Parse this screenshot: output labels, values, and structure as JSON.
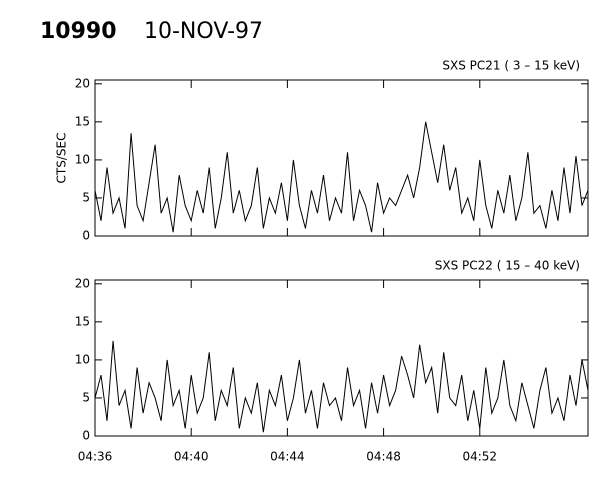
{
  "header": {
    "id": "10990",
    "date": "10-NOV-97"
  },
  "chart_data": [
    {
      "type": "line",
      "title": "SXS PC21  (  3 – 15 keV)",
      "y_label": "CTS/SEC",
      "color": "#000000",
      "x": [
        276,
        276.25,
        276.5,
        276.75,
        277,
        277.25,
        277.5,
        277.75,
        278,
        278.25,
        278.5,
        278.75,
        279,
        279.25,
        279.5,
        279.75,
        280,
        280.25,
        280.5,
        280.75,
        281,
        281.25,
        281.5,
        281.75,
        282,
        282.25,
        282.5,
        282.75,
        283,
        283.25,
        283.5,
        283.75,
        284,
        284.25,
        284.5,
        284.75,
        285,
        285.25,
        285.5,
        285.75,
        286,
        286.25,
        286.5,
        286.75,
        287,
        287.25,
        287.5,
        287.75,
        288,
        288.25,
        288.5,
        288.75,
        289,
        289.25,
        289.5,
        289.75,
        290,
        290.25,
        290.5,
        290.75,
        291,
        291.25,
        291.5,
        291.75,
        292,
        292.25,
        292.5,
        292.75,
        293,
        293.25,
        293.5,
        293.75,
        294,
        294.25,
        294.5,
        294.75,
        295,
        295.25,
        295.5,
        295.75,
        296,
        296.25,
        296.5
      ],
      "values": [
        6,
        2,
        9,
        3,
        5,
        1,
        13.5,
        4,
        2,
        7,
        12,
        3,
        5,
        0.5,
        8,
        4,
        2,
        6,
        3,
        9,
        1,
        5,
        11,
        3,
        6,
        2,
        4,
        9,
        1,
        5,
        3,
        7,
        2,
        10,
        4,
        1,
        6,
        3,
        8,
        2,
        5,
        3,
        11,
        2,
        6,
        4,
        0.5,
        7,
        3,
        5,
        4,
        6,
        8,
        5,
        9,
        15,
        11,
        7,
        12,
        6,
        9,
        3,
        5,
        2,
        10,
        4,
        1,
        6,
        3,
        8,
        2,
        5,
        11,
        3,
        4,
        1,
        6,
        2,
        9,
        3,
        10.5,
        4,
        6
      ],
      "ylim": [
        0,
        20.5
      ],
      "yticks": [
        0,
        5,
        10,
        15,
        20
      ]
    },
    {
      "type": "line",
      "title": "SXS PC22  ( 15 – 40 keV)",
      "color": "#000000",
      "x": [
        276,
        276.25,
        276.5,
        276.75,
        277,
        277.25,
        277.5,
        277.75,
        278,
        278.25,
        278.5,
        278.75,
        279,
        279.25,
        279.5,
        279.75,
        280,
        280.25,
        280.5,
        280.75,
        281,
        281.25,
        281.5,
        281.75,
        282,
        282.25,
        282.5,
        282.75,
        283,
        283.25,
        283.5,
        283.75,
        284,
        284.25,
        284.5,
        284.75,
        285,
        285.25,
        285.5,
        285.75,
        286,
        286.25,
        286.5,
        286.75,
        287,
        287.25,
        287.5,
        287.75,
        288,
        288.25,
        288.5,
        288.75,
        289,
        289.25,
        289.5,
        289.75,
        290,
        290.25,
        290.5,
        290.75,
        291,
        291.25,
        291.5,
        291.75,
        292,
        292.25,
        292.5,
        292.75,
        293,
        293.25,
        293.5,
        293.75,
        294,
        294.25,
        294.5,
        294.75,
        295,
        295.25,
        295.5,
        295.75,
        296,
        296.25,
        296.5
      ],
      "values": [
        5,
        8,
        2,
        12.5,
        4,
        6,
        1,
        9,
        3,
        7,
        5,
        2,
        10,
        4,
        6,
        1,
        8,
        3,
        5,
        11,
        2,
        6,
        4,
        9,
        1,
        5,
        3,
        7,
        0.5,
        6,
        4,
        8,
        2,
        5,
        10,
        3,
        6,
        1,
        7,
        4,
        5,
        2,
        9,
        4,
        6,
        1,
        7,
        3,
        8,
        4,
        6,
        10.5,
        8,
        5,
        12,
        7,
        9,
        3,
        11,
        5,
        4,
        8,
        2,
        6,
        1,
        9,
        3,
        5,
        10,
        4,
        2,
        7,
        4,
        1,
        6,
        9,
        3,
        5,
        2,
        8,
        4,
        10,
        6
      ],
      "ylim": [
        0,
        20.5
      ],
      "yticks": [
        0,
        5,
        10,
        15,
        20
      ],
      "xlim": [
        276,
        296.5
      ],
      "xticks": [
        {
          "value": 276,
          "label": "04:36"
        },
        {
          "value": 280,
          "label": "04:40"
        },
        {
          "value": 284,
          "label": "04:44"
        },
        {
          "value": 288,
          "label": "04:48"
        },
        {
          "value": 292,
          "label": "04:52"
        }
      ]
    }
  ]
}
